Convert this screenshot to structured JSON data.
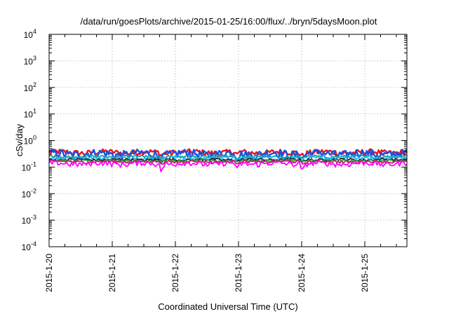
{
  "chart_data": {
    "type": "line",
    "title": "/data/run/goesPlots/archive/2015-01-25/16:00/flux/../bryn/5daysMoon.plot",
    "xlabel": "Coordinated Universal Time (UTC)",
    "ylabel": "cSv/day",
    "yscale": "log",
    "ylim": [
      0.0001,
      10000
    ],
    "xlim": [
      "2015-01-20",
      "2015-01-25 16:00"
    ],
    "grid": true,
    "legend": "none",
    "x_ticks": [
      "2015-1-20",
      "2015-1-21",
      "2015-1-22",
      "2015-1-23",
      "2015-1-24",
      "2015-1-25"
    ],
    "y_ticks": [
      {
        "base": "10",
        "exp": "-4"
      },
      {
        "base": "10",
        "exp": "-3"
      },
      {
        "base": "10",
        "exp": "-2"
      },
      {
        "base": "10",
        "exp": "-1"
      },
      {
        "base": "10",
        "exp": "0"
      },
      {
        "base": "10",
        "exp": "1"
      },
      {
        "base": "10",
        "exp": "2"
      },
      {
        "base": "10",
        "exp": "3"
      },
      {
        "base": "10",
        "exp": "4"
      }
    ],
    "series": [
      {
        "color": "#e8141b",
        "base": 0.36,
        "spread": 0.09,
        "dip_depth": 0.18
      },
      {
        "color": "#1f4ee0",
        "base": 0.32,
        "spread": 0.12,
        "dip_depth": 0.25
      },
      {
        "color": "#11a0a8",
        "base": 0.25,
        "spread": 0.03,
        "dip_depth": 0.1
      },
      {
        "color": "#17b7f0",
        "base": 0.22,
        "spread": 0.03,
        "dip_depth": 0.1
      },
      {
        "color": "#222222",
        "base": 0.19,
        "spread": 0.02,
        "dip_depth": 0.08
      },
      {
        "color": "#2fa12f",
        "base": 0.175,
        "spread": 0.02,
        "dip_depth": 0.08
      },
      {
        "color": "#c41c70",
        "base": 0.16,
        "spread": 0.02,
        "dip_depth": 0.1
      },
      {
        "color": "#ff00ff",
        "base": 0.135,
        "spread": 0.03,
        "dip_depth": 0.35
      }
    ],
    "dips_days": [
      1.78,
      2.98,
      4.02
    ],
    "colors": {
      "background": "#ffffff",
      "frame": "#000000",
      "grid": "#9a9a9a"
    }
  }
}
